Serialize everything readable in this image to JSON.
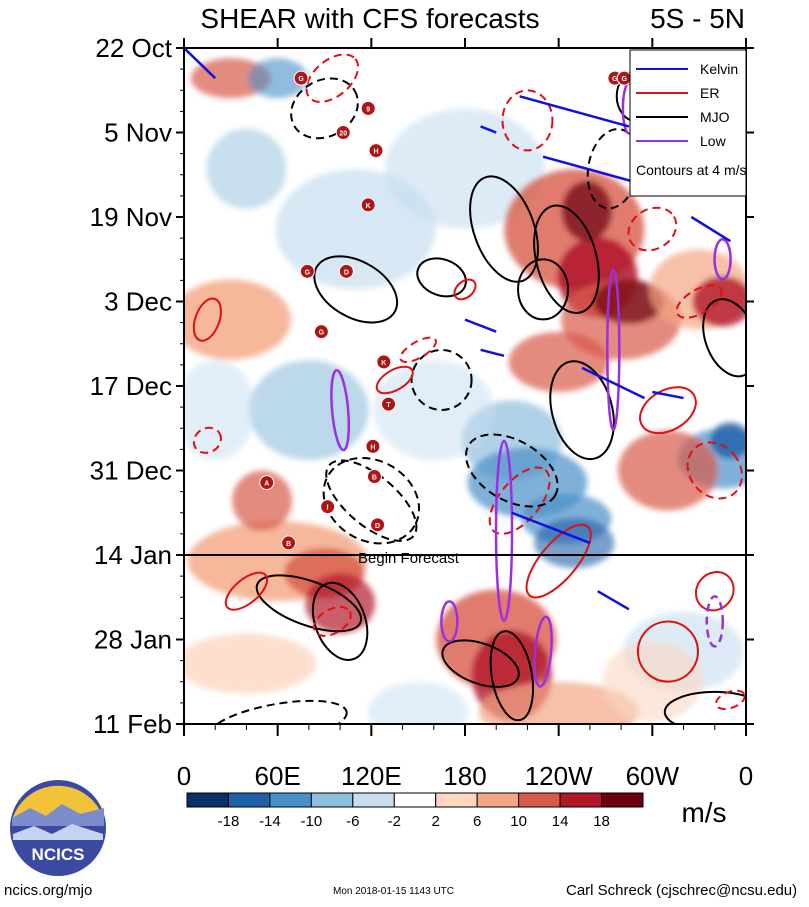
{
  "chart_data": {
    "type": "heatmap",
    "title": "SHEAR with CFS forecasts",
    "region_label": "5S - 5N",
    "y_ticks": [
      "22 Oct",
      "5 Nov",
      "19 Nov",
      "3 Dec",
      "17 Dec",
      "31 Dec",
      "14 Jan",
      "28 Jan",
      "11 Feb"
    ],
    "x_ticks": [
      "0",
      "60E",
      "120E",
      "180",
      "120W",
      "60W",
      "0"
    ],
    "x_tick_values": [
      0,
      60,
      120,
      180,
      240,
      300,
      360
    ],
    "xlim": [
      0,
      360
    ],
    "ylim_days": [
      0,
      112
    ],
    "forecast_line_day": 84,
    "forecast_label": "Begin Forecast",
    "legend": {
      "placement": "top-right",
      "entries": [
        {
          "label": "Kelvin",
          "color": "#1010e0"
        },
        {
          "label": "ER",
          "color": "#e01010"
        },
        {
          "label": "MJO",
          "color": "#000000"
        },
        {
          "label": "Low",
          "color": "#9b30e0"
        }
      ],
      "note": "Contours at 4 m/s"
    },
    "colorbar": {
      "tick_labels": [
        "-18",
        "-14",
        "-10",
        "-6",
        "-2",
        "2",
        "6",
        "10",
        "14",
        "18"
      ],
      "colors": [
        "#08306b",
        "#1f5fa8",
        "#4a8fc8",
        "#8fbfde",
        "#c6def0",
        "#ffffff",
        "#fcd7c2",
        "#f4a583",
        "#d85a4a",
        "#b2182b",
        "#6b0010"
      ],
      "units": "m/s"
    },
    "storms": [
      {
        "x": 75,
        "d": 5,
        "t": "G"
      },
      {
        "x": 118,
        "d": 10,
        "t": "9"
      },
      {
        "x": 102,
        "d": 14,
        "t": "20"
      },
      {
        "x": 123,
        "d": 17,
        "t": "H"
      },
      {
        "x": 118,
        "d": 26,
        "t": "K"
      },
      {
        "x": 79,
        "d": 37,
        "t": "G"
      },
      {
        "x": 104,
        "d": 37,
        "t": "D"
      },
      {
        "x": 88,
        "d": 47,
        "t": "G"
      },
      {
        "x": 128,
        "d": 52,
        "t": "K"
      },
      {
        "x": 131,
        "d": 59,
        "t": "T"
      },
      {
        "x": 121,
        "d": 66,
        "t": "H"
      },
      {
        "x": 122,
        "d": 71,
        "t": "B"
      },
      {
        "x": 53,
        "d": 72,
        "t": "A"
      },
      {
        "x": 92,
        "d": 76,
        "t": "I"
      },
      {
        "x": 124,
        "d": 79,
        "t": "D"
      },
      {
        "x": 67,
        "d": 82,
        "t": "B"
      },
      {
        "x": 276,
        "d": 5,
        "t": "G"
      },
      {
        "x": 282,
        "d": 5,
        "t": "G"
      }
    ]
  },
  "logo": {
    "text": "NCICS"
  },
  "footer": {
    "left": "ncics.org/mjo",
    "center": "Mon 2018-01-15 1143 UTC",
    "right": "Carl Schreck (cjschrec@ncsu.edu)"
  }
}
